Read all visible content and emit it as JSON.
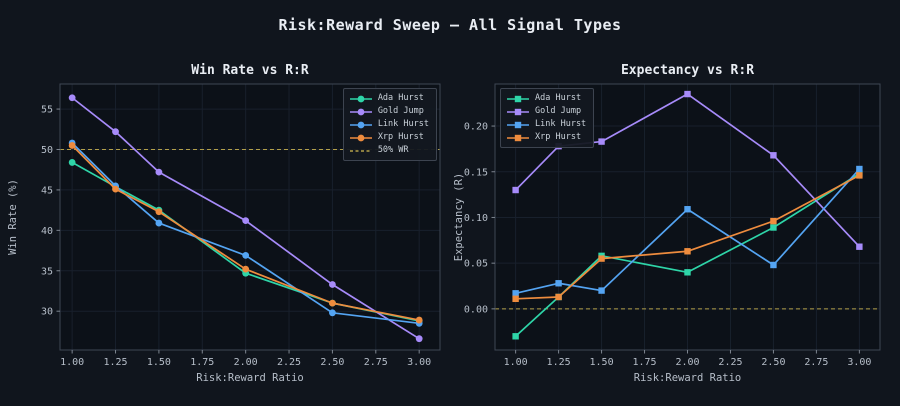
{
  "figure": {
    "title": "Risk:Reward Sweep — All Signal Types"
  },
  "colors": {
    "ada": "#2ed5a8",
    "gold": "#a78bfa",
    "link": "#54a4f2",
    "xrp": "#ee8c3e",
    "reference_dashed": "#b3a04a",
    "background": "#10151d",
    "plot_background": "#0c1118",
    "spine": "#3e4654",
    "grid": "#18202c",
    "tick_text": "#b6bec9",
    "title_text": "#e9edf3"
  },
  "chart_data": [
    {
      "type": "line",
      "title": "Win Rate vs R:R",
      "xlabel": "Risk:Reward Ratio",
      "ylabel": "Win Rate (%)",
      "marker": "circle",
      "legend_position": "top-right",
      "grid": true,
      "x": [
        1.0,
        1.25,
        1.5,
        2.0,
        2.5,
        3.0
      ],
      "xlim": [
        0.93,
        3.12
      ],
      "ylim": [
        25.2,
        58.1
      ],
      "xticks": [
        1.0,
        1.25,
        1.5,
        1.75,
        2.0,
        2.25,
        2.5,
        2.75,
        3.0
      ],
      "xtick_labels": [
        "1.00",
        "1.25",
        "1.50",
        "1.75",
        "2.00",
        "2.25",
        "2.50",
        "2.75",
        "3.00"
      ],
      "yticks": [
        30,
        35,
        40,
        45,
        50,
        55
      ],
      "ytick_labels": [
        "30",
        "35",
        "40",
        "45",
        "50",
        "55"
      ],
      "series": [
        {
          "name": "Ada Hurst",
          "color": "#2ed5a8",
          "values": [
            48.4,
            45.4,
            42.5,
            34.7,
            31.0,
            28.8
          ]
        },
        {
          "name": "Gold Jump",
          "color": "#a78bfa",
          "values": [
            56.4,
            52.2,
            47.2,
            41.2,
            33.3,
            26.6
          ]
        },
        {
          "name": "Link Hurst",
          "color": "#54a4f2",
          "values": [
            50.8,
            45.5,
            40.9,
            36.9,
            29.8,
            28.5
          ]
        },
        {
          "name": "Xrp Hurst",
          "color": "#ee8c3e",
          "values": [
            50.5,
            45.1,
            42.3,
            35.2,
            31.0,
            28.9
          ]
        }
      ],
      "ref_line": {
        "label": "50% WR",
        "value": 50,
        "color": "#b3a04a",
        "style": "dashed"
      }
    },
    {
      "type": "line",
      "title": "Expectancy vs R:R",
      "xlabel": "Risk:Reward Ratio",
      "ylabel": "Expectancy (R)",
      "marker": "square",
      "legend_position": "top-left",
      "grid": true,
      "x": [
        1.0,
        1.25,
        1.5,
        2.0,
        2.5,
        3.0
      ],
      "xlim": [
        0.88,
        3.12
      ],
      "ylim": [
        -0.045,
        0.246
      ],
      "xticks": [
        1.0,
        1.25,
        1.5,
        1.75,
        2.0,
        2.25,
        2.5,
        2.75,
        3.0
      ],
      "xtick_labels": [
        "1.00",
        "1.25",
        "1.50",
        "1.75",
        "2.00",
        "2.25",
        "2.50",
        "2.75",
        "3.00"
      ],
      "yticks": [
        0.0,
        0.05,
        0.1,
        0.15,
        0.2
      ],
      "ytick_labels": [
        "0.00",
        "0.05",
        "0.10",
        "0.15",
        "0.20"
      ],
      "series": [
        {
          "name": "Ada Hurst",
          "color": "#2ed5a8",
          "values": [
            -0.03,
            0.013,
            0.058,
            0.04,
            0.089,
            0.148
          ]
        },
        {
          "name": "Gold Jump",
          "color": "#a78bfa",
          "values": [
            0.13,
            0.178,
            0.183,
            0.235,
            0.168,
            0.068
          ]
        },
        {
          "name": "Link Hurst",
          "color": "#54a4f2",
          "values": [
            0.017,
            0.028,
            0.02,
            0.109,
            0.048,
            0.153
          ]
        },
        {
          "name": "Xrp Hurst",
          "color": "#ee8c3e",
          "values": [
            0.011,
            0.013,
            0.055,
            0.063,
            0.096,
            0.146
          ]
        }
      ],
      "ref_line": {
        "label": null,
        "value": 0,
        "color": "#b3a04a",
        "style": "dashed"
      }
    }
  ]
}
